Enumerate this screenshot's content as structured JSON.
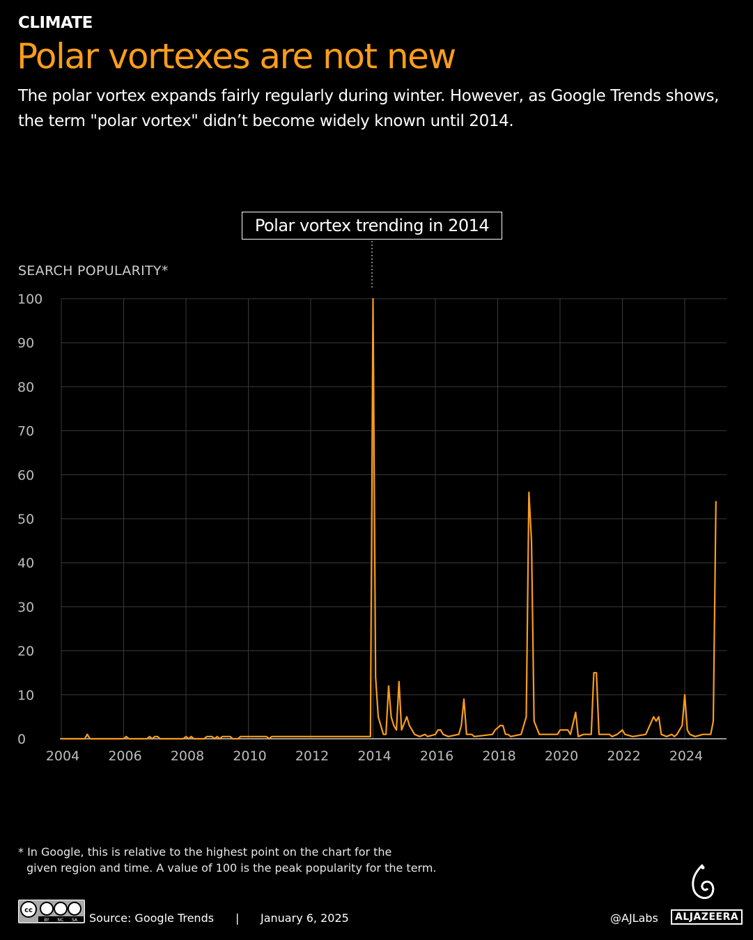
{
  "header": {
    "kicker": "CLIMATE",
    "title": "Polar vortexes are not new",
    "subtitle": "The polar vortex expands fairly regularly during winter. However, as Google Trends shows, the term \"polar vortex\" didn’t become widely known until 2014."
  },
  "chart_data": {
    "type": "line",
    "annotation": "Polar vortex trending in 2014",
    "ylabel": "SEARCH POPULARITY*",
    "xlabel": "",
    "ylim": [
      0,
      100
    ],
    "yticks": [
      0,
      10,
      20,
      30,
      40,
      50,
      60,
      70,
      80,
      90,
      100
    ],
    "xticks": [
      "2004",
      "2006",
      "2008",
      "2010",
      "2012",
      "2014",
      "2016",
      "2018",
      "2020",
      "2022",
      "2024"
    ],
    "grid": true,
    "line_color": "#fa9d1c",
    "series": [
      {
        "points": [
          [
            "2004-01",
            0
          ],
          [
            "2004-10",
            0
          ],
          [
            "2004-11",
            1
          ],
          [
            "2004-12",
            0
          ],
          [
            "2006-01",
            0
          ],
          [
            "2006-02",
            0.5
          ],
          [
            "2006-03",
            0
          ],
          [
            "2006-10",
            0
          ],
          [
            "2006-11",
            0.5
          ],
          [
            "2006-12",
            0
          ],
          [
            "2007-01",
            0.5
          ],
          [
            "2007-02",
            0.5
          ],
          [
            "2007-03",
            0
          ],
          [
            "2007-12",
            0
          ],
          [
            "2008-01",
            0.5
          ],
          [
            "2008-02",
            0
          ],
          [
            "2008-03",
            0.5
          ],
          [
            "2008-04",
            0
          ],
          [
            "2008-08",
            0
          ],
          [
            "2008-09",
            0.5
          ],
          [
            "2008-11",
            0.5
          ],
          [
            "2008-12",
            0
          ],
          [
            "2009-01",
            0.5
          ],
          [
            "2009-02",
            0
          ],
          [
            "2009-03",
            0.5
          ],
          [
            "2009-06",
            0.5
          ],
          [
            "2009-07",
            0
          ],
          [
            "2009-09",
            0
          ],
          [
            "2009-10",
            0.5
          ],
          [
            "2010-08",
            0.5
          ],
          [
            "2010-09",
            0
          ],
          [
            "2010-10",
            0.5
          ],
          [
            "2013-12",
            0.5
          ],
          [
            "2014-01",
            100
          ],
          [
            "2014-02",
            14
          ],
          [
            "2014-03",
            5
          ],
          [
            "2014-05",
            1
          ],
          [
            "2014-06",
            1
          ],
          [
            "2014-07",
            12
          ],
          [
            "2014-08",
            5
          ],
          [
            "2014-09",
            3
          ],
          [
            "2014-10",
            2
          ],
          [
            "2014-11",
            13
          ],
          [
            "2014-12",
            2
          ],
          [
            "2015-02",
            5
          ],
          [
            "2015-03",
            3
          ],
          [
            "2015-05",
            1
          ],
          [
            "2015-07",
            0.5
          ],
          [
            "2015-09",
            1
          ],
          [
            "2015-10",
            0.5
          ],
          [
            "2016-01",
            1
          ],
          [
            "2016-02",
            2
          ],
          [
            "2016-03",
            2
          ],
          [
            "2016-04",
            1
          ],
          [
            "2016-06",
            0.5
          ],
          [
            "2016-10",
            1
          ],
          [
            "2016-11",
            3
          ],
          [
            "2016-12",
            9
          ],
          [
            "2017-01",
            1
          ],
          [
            "2017-03",
            1
          ],
          [
            "2017-04",
            0.5
          ],
          [
            "2017-11",
            1
          ],
          [
            "2017-12",
            2
          ],
          [
            "2018-02",
            3
          ],
          [
            "2018-03",
            3
          ],
          [
            "2018-04",
            1
          ],
          [
            "2018-05",
            1
          ],
          [
            "2018-06",
            0.5
          ],
          [
            "2018-10",
            1
          ],
          [
            "2018-12",
            5
          ],
          [
            "2019-01",
            56
          ],
          [
            "2019-02",
            45
          ],
          [
            "2019-03",
            4
          ],
          [
            "2019-05",
            1
          ],
          [
            "2019-12",
            1
          ],
          [
            "2020-01",
            2
          ],
          [
            "2020-04",
            2
          ],
          [
            "2020-05",
            1
          ],
          [
            "2020-07",
            6
          ],
          [
            "2020-08",
            0.5
          ],
          [
            "2020-10",
            1
          ],
          [
            "2021-01",
            1
          ],
          [
            "2021-02",
            15
          ],
          [
            "2021-03",
            15
          ],
          [
            "2021-04",
            1
          ],
          [
            "2021-08",
            1
          ],
          [
            "2021-09",
            0.5
          ],
          [
            "2021-11",
            1
          ],
          [
            "2022-01",
            2
          ],
          [
            "2022-02",
            1
          ],
          [
            "2022-05",
            0.5
          ],
          [
            "2022-10",
            1
          ],
          [
            "2023-01",
            5
          ],
          [
            "2023-02",
            4
          ],
          [
            "2023-03",
            5
          ],
          [
            "2023-04",
            1
          ],
          [
            "2023-06",
            0.5
          ],
          [
            "2023-08",
            1
          ],
          [
            "2023-09",
            0.5
          ],
          [
            "2023-10",
            1
          ],
          [
            "2023-12",
            3
          ],
          [
            "2024-01",
            10
          ],
          [
            "2024-02",
            2
          ],
          [
            "2024-03",
            1
          ],
          [
            "2024-05",
            0.5
          ],
          [
            "2024-08",
            1
          ],
          [
            "2024-11",
            1
          ],
          [
            "2024-12",
            4
          ],
          [
            "2025-01",
            54
          ]
        ]
      }
    ]
  },
  "footer": {
    "note_line1": "* In Google, this is relative to the highest point on the chart for the",
    "note_line2": "given region and time. A value of 100 is the peak popularity for the term.",
    "license": "CC BY NC SA",
    "source": "Source:  Google Trends",
    "separator": "|",
    "date": "January 6, 2025",
    "handle": "@AJLabs",
    "brand": "ALJAZEERA"
  }
}
